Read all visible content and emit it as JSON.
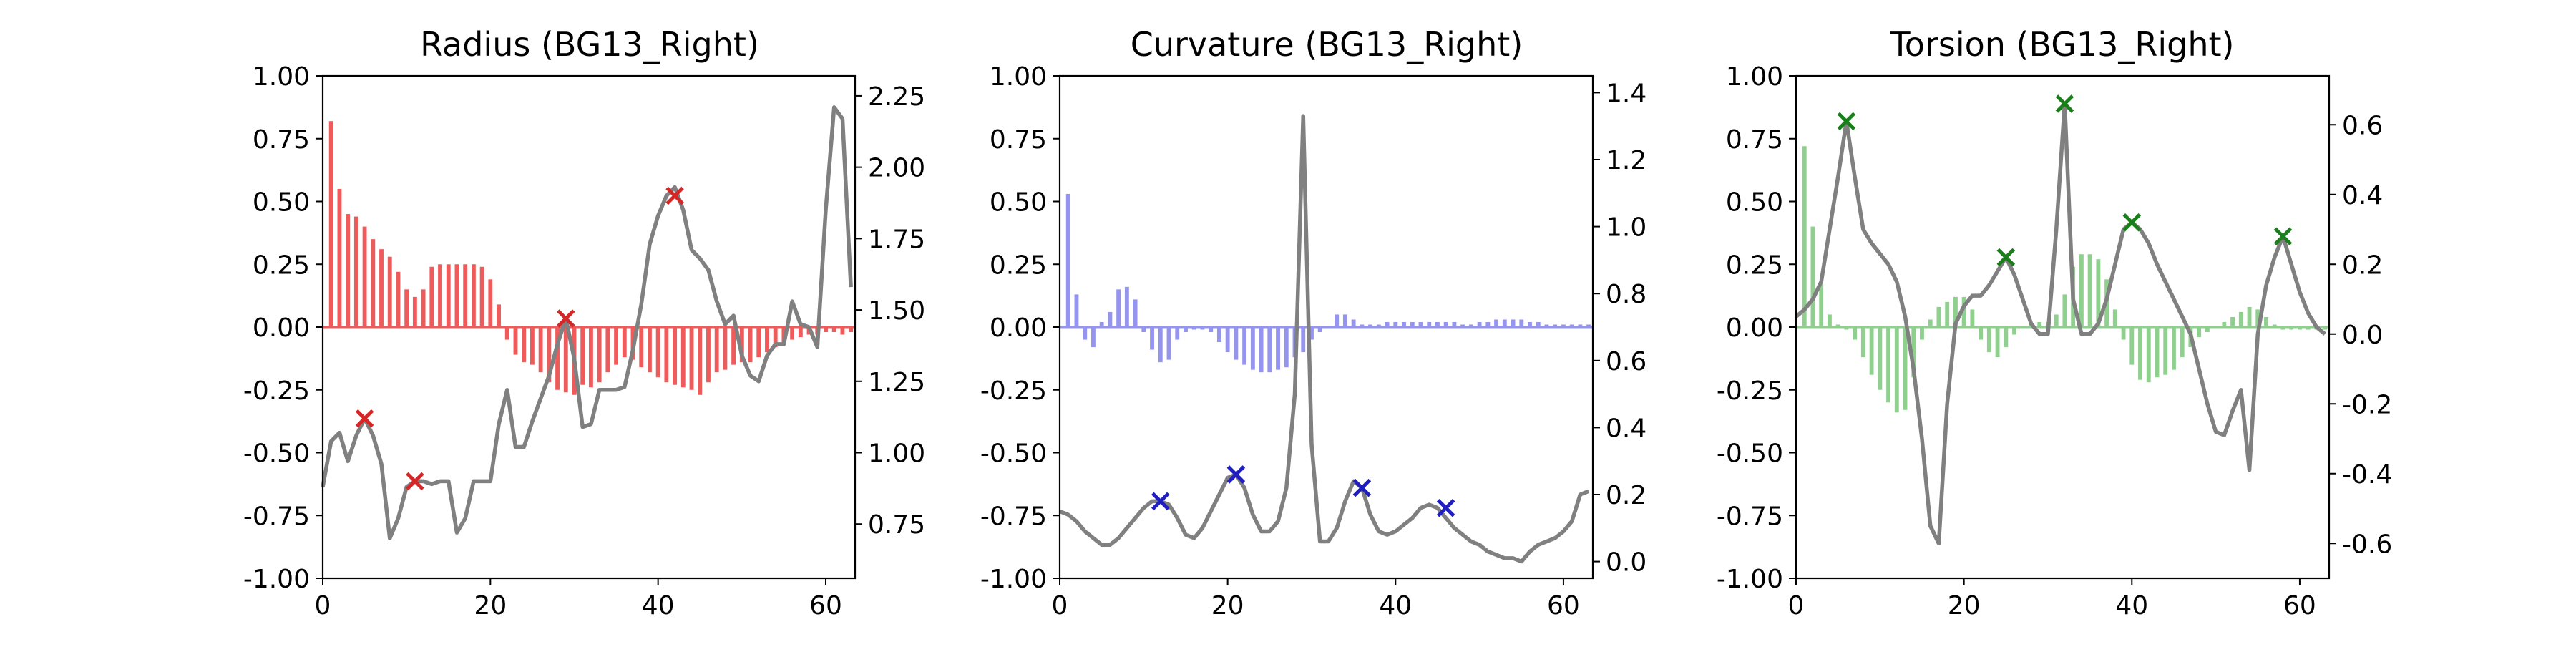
{
  "chart_data": [
    {
      "type": "bar",
      "title": "Radius (BG13_Right)",
      "xlabel": "",
      "ylabel": "",
      "xlim": [
        0,
        63.5
      ],
      "ylim": [
        -1.0,
        1.0
      ],
      "y2lim": [
        0.56,
        2.32
      ],
      "xticks": [
        0,
        20,
        40,
        60
      ],
      "yticks": [
        -1.0,
        -0.75,
        -0.5,
        -0.25,
        0.0,
        0.25,
        0.5,
        0.75,
        1.0
      ],
      "y2ticks": [
        0.75,
        1.0,
        1.25,
        1.5,
        1.75,
        2.0,
        2.25
      ],
      "bar_color": "#ef5b5b",
      "line_color": "#808080",
      "marker_color": "#d62728",
      "series": [
        {
          "kind": "bar",
          "x": [
            0,
            1,
            2,
            3,
            4,
            5,
            6,
            7,
            8,
            9,
            10,
            11,
            12,
            13,
            14,
            15,
            16,
            17,
            18,
            19,
            20,
            21,
            22,
            23,
            24,
            25,
            26,
            27,
            28,
            29,
            30,
            31,
            32,
            33,
            34,
            35,
            36,
            37,
            38,
            39,
            40,
            41,
            42,
            43,
            44,
            45,
            46,
            47,
            48,
            49,
            50,
            51,
            52,
            53,
            54,
            55,
            56,
            57,
            58,
            59,
            60,
            61,
            62,
            63
          ],
          "values": [
            0.0,
            0.82,
            0.55,
            0.45,
            0.44,
            0.4,
            0.35,
            0.31,
            0.28,
            0.22,
            0.15,
            0.12,
            0.15,
            0.24,
            0.25,
            0.25,
            0.25,
            0.25,
            0.25,
            0.24,
            0.19,
            0.09,
            -0.05,
            -0.11,
            -0.14,
            -0.15,
            -0.18,
            -0.22,
            -0.25,
            -0.26,
            -0.27,
            -0.23,
            -0.24,
            -0.22,
            -0.18,
            -0.15,
            -0.12,
            -0.13,
            -0.16,
            -0.18,
            -0.2,
            -0.22,
            -0.23,
            -0.24,
            -0.25,
            -0.27,
            -0.22,
            -0.18,
            -0.17,
            -0.15,
            -0.14,
            -0.14,
            -0.12,
            -0.1,
            -0.08,
            -0.06,
            -0.05,
            -0.04,
            -0.03,
            -0.03,
            -0.02,
            -0.02,
            -0.03,
            -0.02
          ]
        },
        {
          "kind": "line",
          "axis": "right",
          "x": [
            0,
            1,
            2,
            3,
            4,
            5,
            6,
            7,
            8,
            9,
            10,
            11,
            12,
            13,
            14,
            15,
            16,
            17,
            18,
            19,
            20,
            21,
            22,
            23,
            24,
            25,
            26,
            27,
            28,
            29,
            30,
            31,
            32,
            33,
            34,
            35,
            36,
            37,
            38,
            39,
            40,
            41,
            42,
            43,
            44,
            45,
            46,
            47,
            48,
            49,
            50,
            51,
            52,
            53,
            54,
            55,
            56,
            57,
            58,
            59,
            60,
            61,
            62,
            63
          ],
          "values": [
            0.88,
            1.04,
            1.07,
            0.97,
            1.06,
            1.12,
            1.06,
            0.96,
            0.7,
            0.77,
            0.88,
            0.9,
            0.9,
            0.89,
            0.9,
            0.9,
            0.72,
            0.77,
            0.9,
            0.9,
            0.9,
            1.1,
            1.22,
            1.02,
            1.02,
            1.11,
            1.19,
            1.27,
            1.38,
            1.47,
            1.33,
            1.09,
            1.1,
            1.22,
            1.22,
            1.22,
            1.23,
            1.36,
            1.52,
            1.73,
            1.83,
            1.9,
            1.93,
            1.85,
            1.71,
            1.68,
            1.64,
            1.53,
            1.45,
            1.48,
            1.34,
            1.27,
            1.25,
            1.34,
            1.38,
            1.38,
            1.53,
            1.45,
            1.44,
            1.37,
            1.85,
            2.21,
            2.17,
            1.58
          ]
        },
        {
          "kind": "scatter",
          "axis": "right",
          "marker": "x",
          "x": [
            5,
            11,
            29,
            42
          ],
          "values": [
            1.12,
            0.9,
            1.47,
            1.9
          ]
        }
      ]
    },
    {
      "type": "bar",
      "title": "Curvature (BG13_Right)",
      "xlabel": "",
      "ylabel": "",
      "xlim": [
        0,
        63.5
      ],
      "ylim": [
        -1.0,
        1.0
      ],
      "y2lim": [
        -0.05,
        1.45
      ],
      "xticks": [
        0,
        20,
        40,
        60
      ],
      "yticks": [
        -1.0,
        -0.75,
        -0.5,
        -0.25,
        0.0,
        0.25,
        0.5,
        0.75,
        1.0
      ],
      "y2ticks": [
        0.0,
        0.2,
        0.4,
        0.6,
        0.8,
        1.0,
        1.2,
        1.4
      ],
      "bar_color": "#9595f0",
      "line_color": "#808080",
      "marker_color": "#1f1fc0",
      "series": [
        {
          "kind": "bar",
          "x": [
            0,
            1,
            2,
            3,
            4,
            5,
            6,
            7,
            8,
            9,
            10,
            11,
            12,
            13,
            14,
            15,
            16,
            17,
            18,
            19,
            20,
            21,
            22,
            23,
            24,
            25,
            26,
            27,
            28,
            29,
            30,
            31,
            32,
            33,
            34,
            35,
            36,
            37,
            38,
            39,
            40,
            41,
            42,
            43,
            44,
            45,
            46,
            47,
            48,
            49,
            50,
            51,
            52,
            53,
            54,
            55,
            56,
            57,
            58,
            59,
            60,
            61,
            62,
            63
          ],
          "values": [
            0.0,
            0.53,
            0.13,
            -0.05,
            -0.08,
            0.02,
            0.06,
            0.15,
            0.16,
            0.11,
            -0.02,
            -0.09,
            -0.14,
            -0.13,
            -0.05,
            -0.02,
            -0.01,
            -0.01,
            -0.02,
            -0.06,
            -0.1,
            -0.13,
            -0.15,
            -0.17,
            -0.18,
            -0.18,
            -0.17,
            -0.16,
            -0.12,
            -0.1,
            -0.05,
            -0.02,
            0.0,
            0.05,
            0.05,
            0.03,
            0.01,
            0.01,
            0.01,
            0.02,
            0.02,
            0.02,
            0.02,
            0.02,
            0.02,
            0.02,
            0.02,
            0.02,
            0.01,
            0.01,
            0.02,
            0.02,
            0.03,
            0.03,
            0.03,
            0.03,
            0.02,
            0.02,
            0.01,
            0.01,
            0.01,
            0.01,
            0.01,
            0.01
          ]
        },
        {
          "kind": "line",
          "axis": "right",
          "x": [
            0,
            1,
            2,
            3,
            4,
            5,
            6,
            7,
            8,
            9,
            10,
            11,
            12,
            13,
            14,
            15,
            16,
            17,
            18,
            19,
            20,
            21,
            22,
            23,
            24,
            25,
            26,
            27,
            28,
            29,
            30,
            31,
            32,
            33,
            34,
            35,
            36,
            37,
            38,
            39,
            40,
            41,
            42,
            43,
            44,
            45,
            46,
            47,
            48,
            49,
            50,
            51,
            52,
            53,
            54,
            55,
            56,
            57,
            58,
            59,
            60,
            61,
            62,
            63
          ],
          "values": [
            0.15,
            0.14,
            0.12,
            0.09,
            0.07,
            0.05,
            0.05,
            0.07,
            0.1,
            0.13,
            0.16,
            0.18,
            0.18,
            0.17,
            0.13,
            0.08,
            0.07,
            0.1,
            0.15,
            0.2,
            0.25,
            0.26,
            0.22,
            0.14,
            0.09,
            0.09,
            0.12,
            0.22,
            0.5,
            1.33,
            0.35,
            0.06,
            0.06,
            0.1,
            0.18,
            0.24,
            0.22,
            0.14,
            0.09,
            0.08,
            0.09,
            0.11,
            0.13,
            0.16,
            0.17,
            0.16,
            0.13,
            0.1,
            0.08,
            0.06,
            0.05,
            0.03,
            0.02,
            0.01,
            0.01,
            0.0,
            0.03,
            0.05,
            0.06,
            0.07,
            0.09,
            0.12,
            0.2,
            0.21
          ]
        },
        {
          "kind": "scatter",
          "axis": "right",
          "marker": "x",
          "x": [
            12,
            21,
            36,
            46
          ],
          "values": [
            0.18,
            0.26,
            0.22,
            0.16
          ]
        }
      ]
    },
    {
      "type": "bar",
      "title": "Torsion (BG13_Right)",
      "xlabel": "",
      "ylabel": "",
      "xlim": [
        0,
        63.5
      ],
      "ylim": [
        -1.0,
        1.0
      ],
      "y2lim": [
        -0.7,
        0.74
      ],
      "xticks": [
        0,
        20,
        40,
        60
      ],
      "yticks": [
        -1.0,
        -0.75,
        -0.5,
        -0.25,
        0.0,
        0.25,
        0.5,
        0.75,
        1.0
      ],
      "y2ticks": [
        -0.6,
        -0.4,
        -0.2,
        0.0,
        0.2,
        0.4,
        0.6
      ],
      "bar_color": "#8fd08f",
      "line_color": "#808080",
      "marker_color": "#1a7f1a",
      "series": [
        {
          "kind": "bar",
          "x": [
            0,
            1,
            2,
            3,
            4,
            5,
            6,
            7,
            8,
            9,
            10,
            11,
            12,
            13,
            14,
            15,
            16,
            17,
            18,
            19,
            20,
            21,
            22,
            23,
            24,
            25,
            26,
            27,
            28,
            29,
            30,
            31,
            32,
            33,
            34,
            35,
            36,
            37,
            38,
            39,
            40,
            41,
            42,
            43,
            44,
            45,
            46,
            47,
            48,
            49,
            50,
            51,
            52,
            53,
            54,
            55,
            56,
            57,
            58,
            59,
            60,
            61,
            62,
            63
          ],
          "values": [
            0.0,
            0.72,
            0.4,
            0.17,
            0.05,
            0.01,
            -0.01,
            -0.05,
            -0.12,
            -0.19,
            -0.25,
            -0.3,
            -0.34,
            -0.33,
            -0.2,
            -0.05,
            0.03,
            0.08,
            0.1,
            0.12,
            0.12,
            0.07,
            -0.05,
            -0.1,
            -0.12,
            -0.08,
            -0.03,
            0.0,
            0.01,
            0.02,
            0.02,
            0.05,
            0.13,
            0.24,
            0.29,
            0.29,
            0.27,
            0.19,
            0.07,
            -0.05,
            -0.15,
            -0.21,
            -0.22,
            -0.2,
            -0.19,
            -0.17,
            -0.12,
            -0.08,
            -0.04,
            -0.02,
            0.0,
            0.02,
            0.04,
            0.06,
            0.08,
            0.07,
            0.04,
            0.01,
            -0.01,
            -0.01,
            -0.01,
            -0.01,
            -0.01,
            -0.01
          ]
        },
        {
          "kind": "line",
          "axis": "right",
          "x": [
            0,
            1,
            2,
            3,
            4,
            5,
            6,
            7,
            8,
            9,
            10,
            11,
            12,
            13,
            14,
            15,
            16,
            17,
            18,
            19,
            20,
            21,
            22,
            23,
            24,
            25,
            26,
            27,
            28,
            29,
            30,
            31,
            32,
            33,
            34,
            35,
            36,
            37,
            38,
            39,
            40,
            41,
            42,
            43,
            44,
            45,
            46,
            47,
            48,
            49,
            50,
            51,
            52,
            53,
            54,
            55,
            56,
            57,
            58,
            59,
            60,
            61,
            62,
            63
          ],
          "values": [
            0.05,
            0.07,
            0.1,
            0.15,
            0.3,
            0.45,
            0.61,
            0.45,
            0.3,
            0.26,
            0.23,
            0.2,
            0.15,
            0.05,
            -0.1,
            -0.3,
            -0.55,
            -0.6,
            -0.2,
            0.03,
            0.08,
            0.11,
            0.11,
            0.14,
            0.18,
            0.22,
            0.17,
            0.1,
            0.03,
            0.0,
            0.0,
            0.3,
            0.66,
            0.1,
            0.0,
            0.0,
            0.03,
            0.1,
            0.2,
            0.3,
            0.32,
            0.3,
            0.26,
            0.2,
            0.15,
            0.1,
            0.05,
            0.0,
            -0.1,
            -0.2,
            -0.28,
            -0.29,
            -0.22,
            -0.16,
            -0.39,
            0.0,
            0.14,
            0.22,
            0.28,
            0.2,
            0.12,
            0.06,
            0.02,
            0.0
          ]
        },
        {
          "kind": "scatter",
          "axis": "right",
          "marker": "x",
          "x": [
            6,
            25,
            32,
            40,
            58
          ],
          "values": [
            0.61,
            0.22,
            0.66,
            0.32,
            0.28
          ]
        }
      ]
    }
  ]
}
